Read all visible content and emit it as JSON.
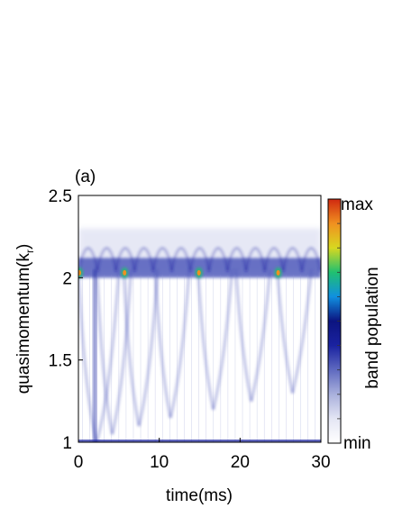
{
  "chart_data": {
    "type": "heatmap",
    "panel_label": "(a)",
    "title": "",
    "xlabel": "time(ms)",
    "ylabel_main": "quasimomentum(k",
    "ylabel_sub": "r",
    "ylabel_close": ")",
    "xlim": [
      0,
      30
    ],
    "ylim": [
      1,
      2.5
    ],
    "x_ticks": [
      0,
      10,
      20,
      30
    ],
    "y_ticks": [
      1,
      1.5,
      2,
      2.5
    ],
    "x_tick_labels": [
      "0",
      "10",
      "20",
      "30"
    ],
    "y_tick_labels": [
      "1",
      "1.5",
      "2",
      "2.5"
    ],
    "colorbar": {
      "label": "band population",
      "max_label": "max",
      "min_label": "min",
      "colors": [
        "#ffffff",
        "#e4e6f4",
        "#a9b0dc",
        "#5f6ac0",
        "#1a22a0",
        "#0c1480",
        "#1090e0",
        "#20c070",
        "#d8d820",
        "#f09020",
        "#d02810"
      ]
    },
    "features": {
      "dense_band_center": 2.05,
      "hotspot_times": [
        0,
        5.6,
        14.8,
        24.6
      ],
      "hotspot_k": 2.03,
      "arch_times": [
        0,
        2.3,
        5.6,
        9.5,
        14.8,
        19.5,
        24.6
      ]
    }
  }
}
